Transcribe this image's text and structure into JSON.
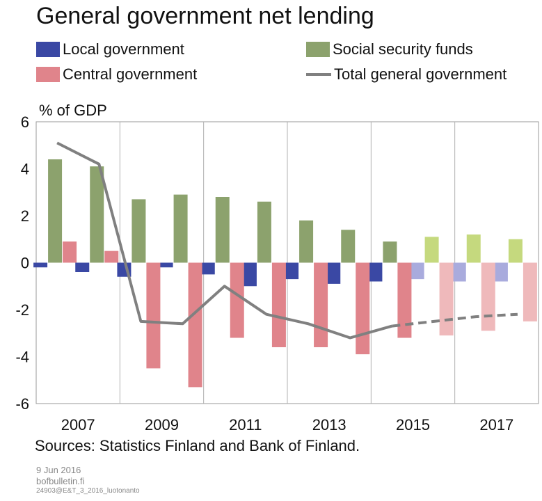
{
  "title": "General government net lending",
  "legend": [
    {
      "label": "Local government",
      "color": "#3a48a4",
      "kind": "bar"
    },
    {
      "label": "Social security funds",
      "color": "#8ca26d",
      "kind": "bar"
    },
    {
      "label": "Central government",
      "color": "#e0848b",
      "kind": "bar"
    },
    {
      "label": "Total general government",
      "color": "#808080",
      "kind": "line"
    }
  ],
  "unit_label": "% of GDP",
  "sources": "Sources: Statistics Finland and Bank of Finland.",
  "date": "9 Jun 2016",
  "site": "bofbulletin.fi",
  "code": "24903@E&T_3_2016_luotonanto",
  "chart_data": {
    "type": "bar",
    "categories": [
      "2007",
      "2008",
      "2009",
      "2010",
      "2011",
      "2012",
      "2013",
      "2014",
      "2015",
      "2016",
      "2017",
      "2018"
    ],
    "x_tick_labels": [
      "2007",
      "2009",
      "2011",
      "2013",
      "2015",
      "2017"
    ],
    "ylim": [
      -6,
      6
    ],
    "yticks": [
      -6,
      -4,
      -2,
      0,
      2,
      4,
      6
    ],
    "grid": "vertical",
    "forecast_from": "2016",
    "series": [
      {
        "name": "Local government",
        "kind": "bar",
        "color": "#3a48a4",
        "forecast_color": "#a9abdd",
        "values": [
          -0.2,
          -0.4,
          -0.6,
          -0.2,
          -0.5,
          -1.0,
          -0.7,
          -0.9,
          -0.8,
          -0.7,
          -0.8,
          -0.8
        ]
      },
      {
        "name": "Social security funds",
        "kind": "bar",
        "color": "#8ca26d",
        "forecast_color": "#c5d97e",
        "values": [
          4.4,
          4.1,
          2.7,
          2.9,
          2.8,
          2.6,
          1.8,
          1.4,
          0.9,
          1.1,
          1.2,
          1.0
        ]
      },
      {
        "name": "Central government",
        "kind": "bar",
        "color": "#e0848b",
        "forecast_color": "#efb9bb",
        "values": [
          0.9,
          0.5,
          -4.5,
          -5.3,
          -3.2,
          -3.6,
          -3.6,
          -3.9,
          -3.2,
          -3.1,
          -2.9,
          -2.5
        ]
      },
      {
        "name": "Total general government",
        "kind": "line",
        "color": "#808080",
        "values": [
          5.1,
          4.2,
          -2.5,
          -2.6,
          -1.0,
          -2.2,
          -2.6,
          -3.2,
          -2.7,
          -2.5,
          -2.3,
          -2.2
        ]
      }
    ]
  }
}
